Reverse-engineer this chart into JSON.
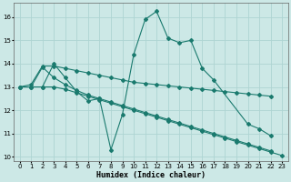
{
  "xlabel": "Humidex (Indice chaleur)",
  "bg_color": "#cce8e6",
  "grid_color": "#aed4d2",
  "line_color": "#1a7a6e",
  "xlim": [
    -0.5,
    23.5
  ],
  "ylim": [
    9.8,
    16.6
  ],
  "yticks": [
    10,
    11,
    12,
    13,
    14,
    15,
    16
  ],
  "xticks": [
    0,
    1,
    2,
    3,
    4,
    5,
    6,
    7,
    8,
    9,
    10,
    11,
    12,
    13,
    14,
    15,
    16,
    17,
    18,
    19,
    20,
    21,
    22,
    23
  ],
  "s0_x": [
    0,
    1,
    2,
    3,
    4,
    5,
    6,
    7,
    8,
    9,
    10,
    11,
    12,
    13,
    14,
    15,
    16,
    17,
    20,
    21,
    22
  ],
  "s0_y": [
    13.0,
    13.0,
    13.0,
    14.0,
    13.4,
    12.8,
    12.4,
    12.5,
    10.3,
    11.8,
    14.4,
    15.9,
    16.25,
    15.1,
    14.9,
    15.0,
    13.8,
    13.3,
    11.4,
    11.2,
    10.9
  ],
  "s1_x": [
    0,
    1,
    2,
    3,
    4,
    5,
    6,
    7,
    8,
    9,
    10,
    11,
    12,
    13,
    14,
    15,
    16,
    17,
    18,
    19,
    20,
    21,
    22
  ],
  "s1_y": [
    13.0,
    13.1,
    13.9,
    13.9,
    13.8,
    13.7,
    13.6,
    13.5,
    13.4,
    13.3,
    13.2,
    13.15,
    13.1,
    13.05,
    13.0,
    12.95,
    12.9,
    12.85,
    12.8,
    12.75,
    12.7,
    12.65,
    12.6
  ],
  "s2_x": [
    0,
    1,
    2,
    3,
    4,
    5,
    6,
    7,
    8,
    9,
    10,
    11,
    12,
    13,
    14,
    15,
    16,
    17,
    18,
    19,
    20,
    21,
    22
  ],
  "s2_y": [
    13.0,
    13.0,
    13.85,
    13.4,
    13.1,
    12.85,
    12.65,
    12.5,
    12.35,
    12.2,
    12.05,
    11.9,
    11.75,
    11.6,
    11.45,
    11.3,
    11.15,
    11.0,
    10.85,
    10.7,
    10.55,
    10.4,
    10.25
  ],
  "s3_x": [
    2,
    3,
    4,
    5,
    6,
    7,
    8,
    9,
    10,
    11,
    12,
    13,
    14,
    15,
    16,
    17,
    18,
    19,
    20,
    21,
    22,
    23
  ],
  "s3_y": [
    13.0,
    13.0,
    12.9,
    12.75,
    12.6,
    12.45,
    12.3,
    12.15,
    12.0,
    11.85,
    11.7,
    11.55,
    11.4,
    11.25,
    11.1,
    10.95,
    10.8,
    10.65,
    10.5,
    10.35,
    10.2,
    10.05
  ]
}
